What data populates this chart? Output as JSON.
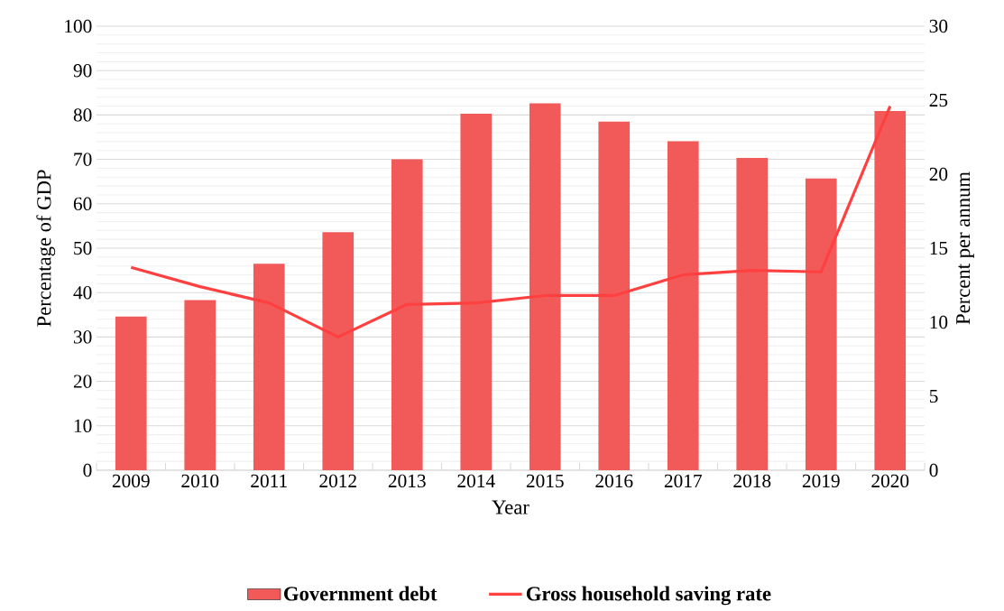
{
  "chart_data": {
    "type": "bar",
    "xlabel": "Year",
    "ylabel": "Percentage of GDP",
    "y2label": "Percent per annum",
    "categories": [
      "2009",
      "2010",
      "2011",
      "2012",
      "2013",
      "2014",
      "2015",
      "2016",
      "2017",
      "2018",
      "2019",
      "2020"
    ],
    "series": [
      {
        "name": "Government debt",
        "color": "#f25a5a",
        "values": [
          34.6,
          38.3,
          46.5,
          53.6,
          70.0,
          80.3,
          82.6,
          78.5,
          74.1,
          70.3,
          65.7,
          80.9
        ]
      },
      {
        "name": "Gross household saving rate",
        "type": "line",
        "axis": "y2",
        "color": "#ff4040",
        "values": [
          13.7,
          12.4,
          11.3,
          9.0,
          11.2,
          11.3,
          11.8,
          11.8,
          13.2,
          13.5,
          13.4,
          24.6
        ]
      }
    ],
    "ylim": [
      0,
      100
    ],
    "yticks": [
      0,
      10,
      20,
      30,
      40,
      50,
      60,
      70,
      80,
      90,
      100
    ],
    "y2lim": [
      0,
      30
    ],
    "y2ticks": [
      0,
      5,
      10,
      15,
      20,
      25,
      30
    ],
    "grid": "y",
    "legend": "bottom"
  }
}
